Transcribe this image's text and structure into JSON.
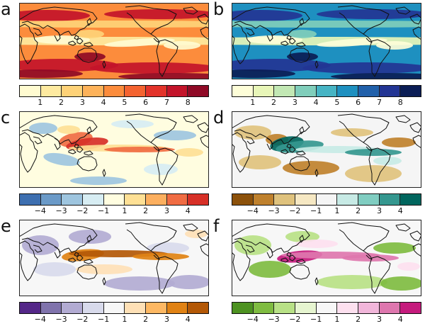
{
  "panels": [
    {
      "label": "a",
      "kind": "sequential",
      "colors": [
        "#fffbd0",
        "#feeaa0",
        "#fed278",
        "#fdb25a",
        "#fc8c3c",
        "#f46330",
        "#e3332a",
        "#c3142a",
        "#8f0a26"
      ],
      "ticks": [
        "1",
        "2",
        "3",
        "4",
        "5",
        "6",
        "7",
        "8"
      ],
      "ocean": "#fc8c3c",
      "blobs": [
        "#fffbd0",
        "#feeaa0",
        "#fed278",
        "#c3142a",
        "#8f0a26"
      ]
    },
    {
      "label": "b",
      "kind": "sequential",
      "colors": [
        "#fefed8",
        "#e8f6b8",
        "#c2e8b4",
        "#80cebb",
        "#46b4c4",
        "#1e90c0",
        "#2160aa",
        "#233594",
        "#0b1d55"
      ],
      "ticks": [
        "1",
        "2",
        "3",
        "4",
        "5",
        "6",
        "7",
        "8"
      ],
      "ocean": "#1e90c0",
      "blobs": [
        "#fefed8",
        "#e8f6b8",
        "#80cebb",
        "#233594",
        "#0b1d55"
      ]
    },
    {
      "label": "c",
      "kind": "diverging",
      "colors": [
        "#3d6fb0",
        "#6b9ac8",
        "#9ec5df",
        "#d7edf3",
        "#fffde0",
        "#fee095",
        "#fcaf5f",
        "#f06c43",
        "#d73027"
      ],
      "ticks": [
        "−4",
        "−3",
        "−2",
        "−1",
        "1",
        "2",
        "3",
        "4"
      ],
      "ocean": "#fffde0",
      "blobs": [
        "#9ec5df",
        "#d7edf3",
        "#fee095",
        "#f06c43",
        "#d73027"
      ]
    },
    {
      "label": "d",
      "kind": "diverging",
      "colors": [
        "#8c510a",
        "#bf812d",
        "#dfc27d",
        "#f6e8c3",
        "#f5f5f5",
        "#c7eae5",
        "#80cdc1",
        "#35978f",
        "#01665e"
      ],
      "ticks": [
        "−4",
        "−3",
        "−2",
        "−1",
        "1",
        "2",
        "3",
        "4"
      ],
      "ocean": "#f5f5f5",
      "blobs": [
        "#dfc27d",
        "#bf812d",
        "#c7eae5",
        "#35978f",
        "#01665e"
      ]
    },
    {
      "label": "e",
      "kind": "diverging",
      "colors": [
        "#542788",
        "#8073ac",
        "#b2abd2",
        "#d8daeb",
        "#f7f7f7",
        "#fee0b6",
        "#fdb863",
        "#e08214",
        "#b35806"
      ],
      "ticks": [
        "−4",
        "−3",
        "−2",
        "−1",
        "1",
        "2",
        "3",
        "4"
      ],
      "ocean": "#f7f7f7",
      "blobs": [
        "#b2abd2",
        "#d8daeb",
        "#fee0b6",
        "#e08214",
        "#b35806"
      ]
    },
    {
      "label": "f",
      "kind": "diverging",
      "colors": [
        "#4d9221",
        "#7fbc41",
        "#b8e186",
        "#e6f5d0",
        "#f7f7f7",
        "#fde0ef",
        "#f1b6da",
        "#de77ae",
        "#c51b7d"
      ],
      "ticks": [
        "−4",
        "−3",
        "−2",
        "−1",
        "1",
        "2",
        "3",
        "4"
      ],
      "ocean": "#f7f7f7",
      "blobs": [
        "#b8e186",
        "#7fbc41",
        "#fde0ef",
        "#de77ae",
        "#c51b7d"
      ]
    }
  ]
}
